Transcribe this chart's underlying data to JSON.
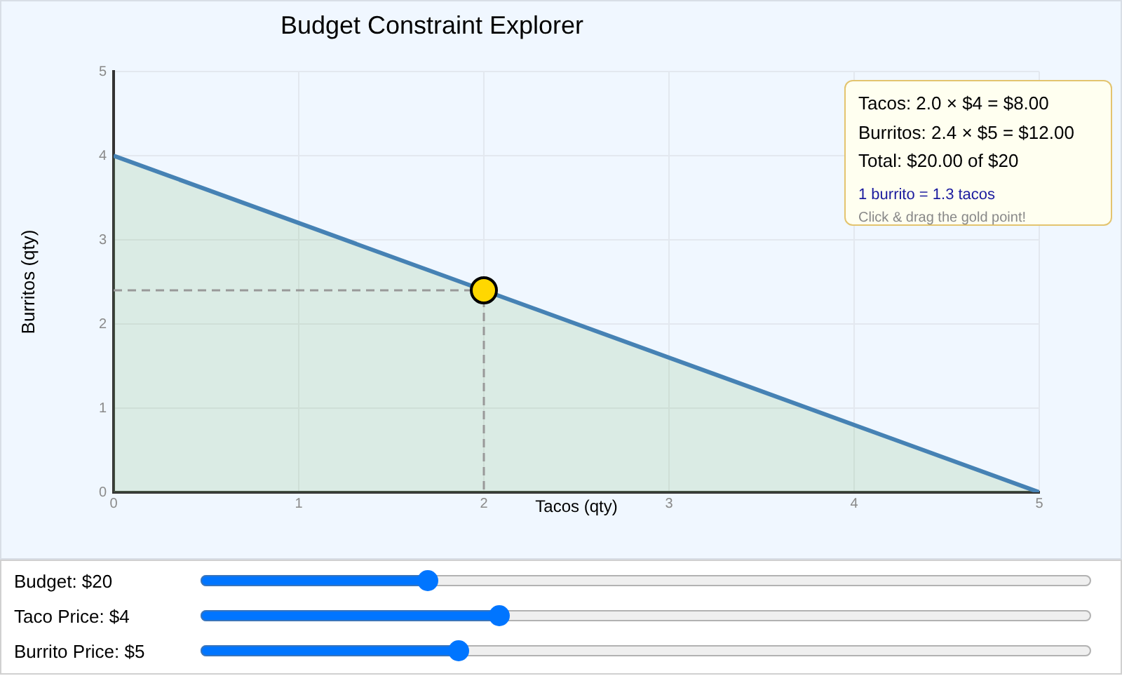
{
  "chart_data": {
    "type": "area",
    "title": "Budget Constraint Explorer",
    "xlabel": "Tacos (qty)",
    "ylabel": "Burritos (qty)",
    "series": [
      {
        "color": "#82c078",
        "x": [
          0,
          5
        ],
        "values": [
          4,
          0
        ]
      },
      {
        "type": "line",
        "color": "#999999",
        "x": [
          0,
          2,
          2
        ],
        "values": [
          2.4,
          2.4,
          0
        ],
        "line_style": "dashed"
      },
      {
        "type": "scatter",
        "color": "#ffd700",
        "x": [
          2
        ],
        "values": [
          2.4
        ],
        "marker": "circle"
      }
    ],
    "xlim": [
      0,
      5
    ],
    "xticks": [
      0,
      1,
      2,
      3,
      4,
      5
    ],
    "ylim": [
      0,
      5
    ],
    "yticks": [
      0,
      1,
      2,
      3,
      4,
      5
    ],
    "grid": true,
    "annotations": [
      "Tacos: 2.0 × $4 = $8.00",
      "Burritos: 2.4 × $5 = $12.00",
      "Total: $20.00 of $20",
      "1 burrito = 1.3 tacos",
      "Click & drag the gold point!",
      "Budget: $20",
      "Taco Price: $4",
      "Burrito Price: $5"
    ]
  }
}
